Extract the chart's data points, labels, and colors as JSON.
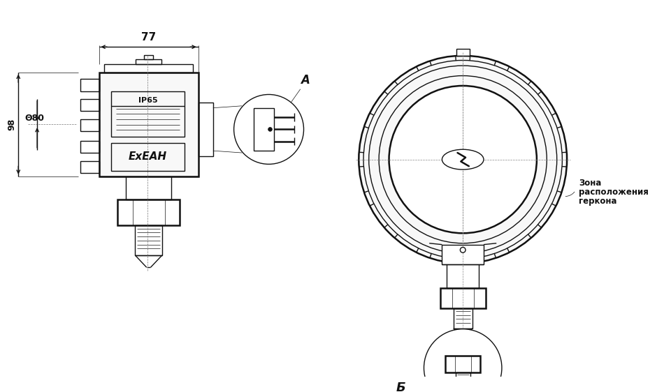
{
  "bg_color": "white",
  "lc": "#111111",
  "lw": 1.0,
  "tlw": 1.8,
  "thin": 0.5,
  "label_77": "77",
  "label_A": "A",
  "label_B": "Б",
  "label_d80": "Θ80",
  "label_98": "98",
  "label_IP65": "IP65",
  "label_ExEAD": "ExEAН",
  "label_zona_line1": "Зона",
  "label_zona_line2": "расположения",
  "label_zona_line3": "геркона"
}
